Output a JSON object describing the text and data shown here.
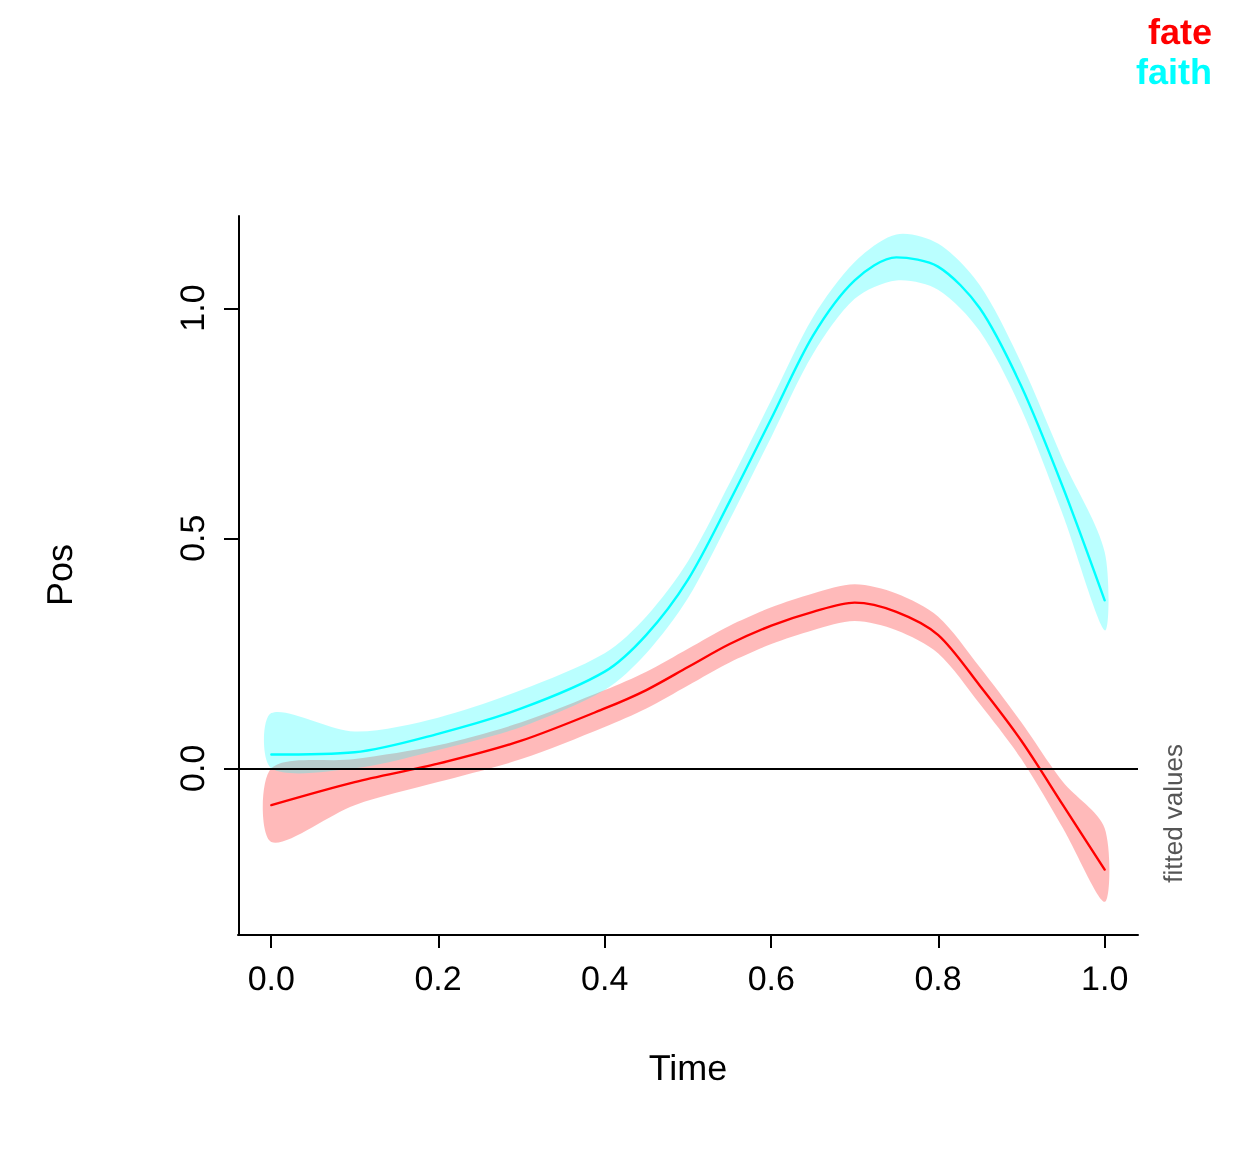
{
  "chart_data": {
    "type": "line",
    "xlabel": "Time",
    "ylabel": "Pos",
    "x": [
      0,
      0.1,
      0.2,
      0.3,
      0.4,
      0.45,
      0.5,
      0.55,
      0.6,
      0.65,
      0.7,
      0.75,
      0.8,
      0.85,
      0.9,
      0.95,
      1.0
    ],
    "series": [
      {
        "name": "fate",
        "color": "#ff0000",
        "values": [
          -0.08,
          -0.03,
          0.01,
          0.06,
          0.13,
          0.17,
          0.22,
          0.27,
          0.31,
          0.34,
          0.36,
          0.34,
          0.29,
          0.18,
          0.06,
          -0.08,
          -0.22
        ],
        "lower": [
          -0.16,
          -0.08,
          -0.03,
          0.02,
          0.09,
          0.13,
          0.18,
          0.23,
          0.27,
          0.3,
          0.32,
          0.3,
          0.25,
          0.14,
          0.02,
          -0.13,
          -0.29
        ],
        "upper": [
          0.0,
          0.02,
          0.05,
          0.1,
          0.17,
          0.21,
          0.26,
          0.31,
          0.35,
          0.38,
          0.4,
          0.38,
          0.33,
          0.22,
          0.1,
          -0.03,
          -0.13
        ]
      },
      {
        "name": "faith",
        "color": "#00ffff",
        "values": [
          0.03,
          0.035,
          0.075,
          0.13,
          0.21,
          0.29,
          0.41,
          0.58,
          0.76,
          0.94,
          1.06,
          1.11,
          1.09,
          1.0,
          0.83,
          0.61,
          0.365
        ],
        "lower": [
          0.0,
          0.0,
          0.04,
          0.09,
          0.17,
          0.25,
          0.37,
          0.54,
          0.72,
          0.9,
          1.02,
          1.06,
          1.04,
          0.95,
          0.78,
          0.55,
          0.3
        ],
        "upper": [
          0.12,
          0.08,
          0.11,
          0.17,
          0.25,
          0.33,
          0.45,
          0.62,
          0.8,
          0.98,
          1.1,
          1.16,
          1.14,
          1.05,
          0.88,
          0.67,
          0.47
        ]
      }
    ],
    "xlim": [
      -0.04,
      1.04
    ],
    "xticks": [
      {
        "value": 0,
        "label": "0.0"
      },
      0.2,
      0.4,
      0.6,
      0.8,
      {
        "value": 1,
        "label": "1.0"
      }
    ],
    "ylim": [
      -0.36,
      1.2
    ],
    "yticks": [
      {
        "value": 0,
        "label": "0.0"
      },
      0.5,
      {
        "value": 1,
        "label": "1.0"
      }
    ],
    "ref_lines": [
      {
        "axis": "y",
        "value": 0,
        "color": "#000000"
      }
    ],
    "annotations": [
      "fitted values"
    ],
    "legend": "top right",
    "grid": false,
    "marker": "none",
    "line_style": "solid"
  }
}
